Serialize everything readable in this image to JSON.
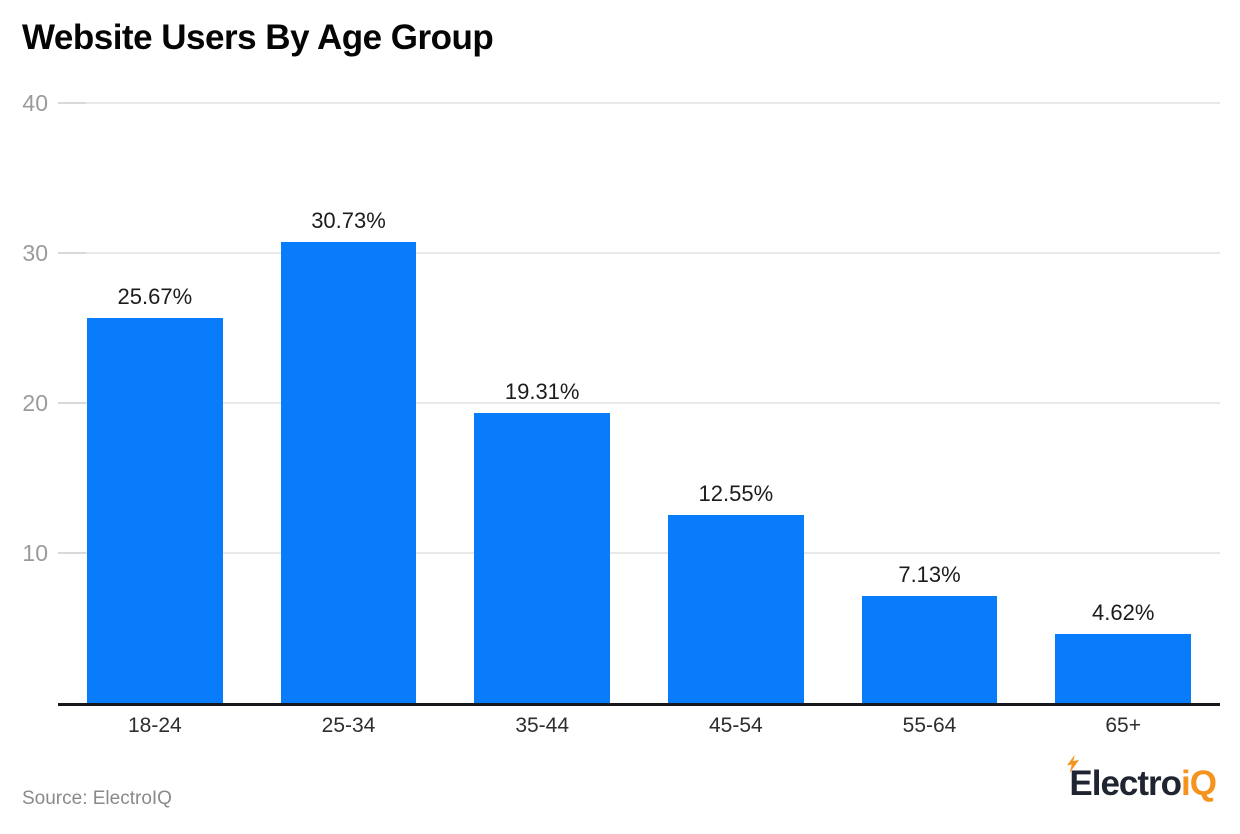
{
  "header": {
    "title": "Website Users By Age Group"
  },
  "chart_data": {
    "type": "bar",
    "title": "Website Users By Age Group",
    "categories": [
      "18-24",
      "25-34",
      "35-44",
      "45-54",
      "55-64",
      "65+"
    ],
    "values": [
      25.67,
      30.73,
      19.31,
      12.55,
      7.13,
      4.62
    ],
    "value_labels": [
      "25.67%",
      "30.73%",
      "19.31%",
      "12.55%",
      "7.13%",
      "4.62%"
    ],
    "xlabel": "",
    "ylabel": "",
    "ylim": [
      0,
      40
    ],
    "yticks": [
      40,
      30,
      20,
      10
    ],
    "grid": true,
    "legend": "none",
    "bar_color": "#087cfa",
    "gridline_color": "#e9e9e9",
    "axis_line_color": "#17181c"
  },
  "footer": {
    "source_label": "Source: ElectroIQ",
    "logo": {
      "text_dark": "Electro",
      "text_accent": "iQ",
      "dark_color": "#1e2430",
      "accent_color": "#f6921e",
      "bolt_icon": "lightning-bolt"
    }
  }
}
